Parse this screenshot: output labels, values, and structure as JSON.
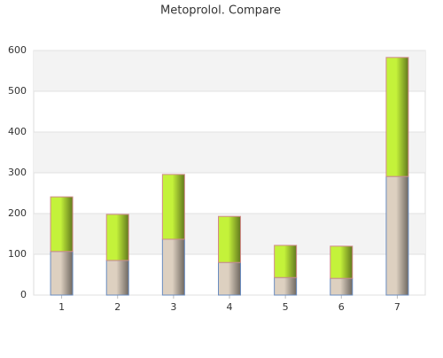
{
  "chart_data": {
    "type": "stacked-bar",
    "title": "Metoprolol. Compare",
    "categories": [
      "1",
      "2",
      "3",
      "4",
      "5",
      "6",
      "7"
    ],
    "series": [
      {
        "color": "#ddd0c0",
        "values": [
          107,
          85,
          137,
          80,
          43,
          41,
          291
        ]
      },
      {
        "color": "#c4f23a",
        "values": [
          134,
          113,
          159,
          113,
          79,
          79,
          292
        ]
      }
    ],
    "ylim": [
      0,
      600
    ],
    "yticks": [
      0,
      100,
      200,
      300,
      400,
      500,
      600
    ],
    "grid": true
  }
}
